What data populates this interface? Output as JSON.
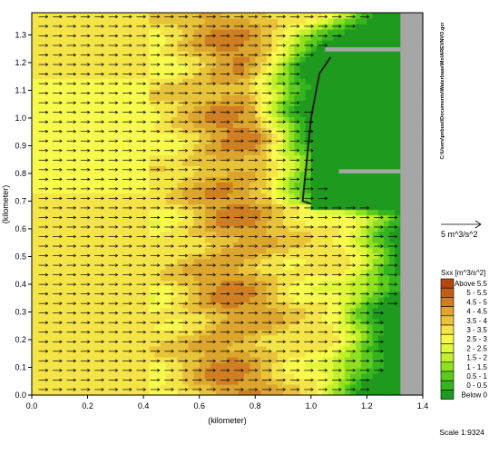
{
  "chart_data": {
    "type": "heatmap",
    "title": "",
    "xlabel": "(kilometer)",
    "ylabel": "(kilometer)",
    "xlim": [
      0.0,
      1.4
    ],
    "ylim": [
      0.0,
      1.38
    ],
    "x_ticks": [
      "0.0",
      "0.2",
      "0.4",
      "0.6",
      "0.8",
      "1.0",
      "1.2",
      "1.4"
    ],
    "x_tick_values": [
      0.0,
      0.2,
      0.4,
      0.6,
      0.8,
      1.0,
      1.2,
      1.4
    ],
    "y_ticks": [
      "0.0",
      "0.1",
      "0.2",
      "0.3",
      "0.4",
      "0.5",
      "0.6",
      "0.7",
      "0.8",
      "0.9",
      "1.0",
      "1.1",
      "1.2",
      "1.3"
    ],
    "y_tick_values": [
      0.0,
      0.1,
      0.2,
      0.3,
      0.4,
      0.5,
      0.6,
      0.7,
      0.8,
      0.9,
      1.0,
      1.1,
      1.2,
      1.3
    ],
    "side_note": "C:\\Users\\pnbusi\\Documents\\Waterbaas\\Mo\\AREVNVO.gcr",
    "vector_reference": {
      "label": "5 m^3/s^2"
    },
    "legend": {
      "title": "Sxx [m^3/s^2]",
      "entries": [
        {
          "label": "Above 5.5",
          "color": "#b4480e"
        },
        {
          "label": "5 - 5.5",
          "color": "#c25e1a"
        },
        {
          "label": "4.5 - 5",
          "color": "#cf7f22"
        },
        {
          "label": "4 - 4.5",
          "color": "#dba52e"
        },
        {
          "label": "3.5 - 4",
          "color": "#e8c33a"
        },
        {
          "label": "3 - 3.5",
          "color": "#f5e448"
        },
        {
          "label": "2.5 - 3",
          "color": "#f7fa4c"
        },
        {
          "label": "2 - 2.5",
          "color": "#e1f73a"
        },
        {
          "label": "1.5 - 2",
          "color": "#bff02a"
        },
        {
          "label": "1 - 1.5",
          "color": "#8ee021"
        },
        {
          "label": "0.5 - 1",
          "color": "#5ccb1e"
        },
        {
          "label": "0 - 0.5",
          "color": "#35b41e"
        },
        {
          "label": "Below 0",
          "color": "#1f9a1f"
        }
      ]
    },
    "land_color": "#a6a6a6",
    "scale": "Scale 1:9324"
  }
}
